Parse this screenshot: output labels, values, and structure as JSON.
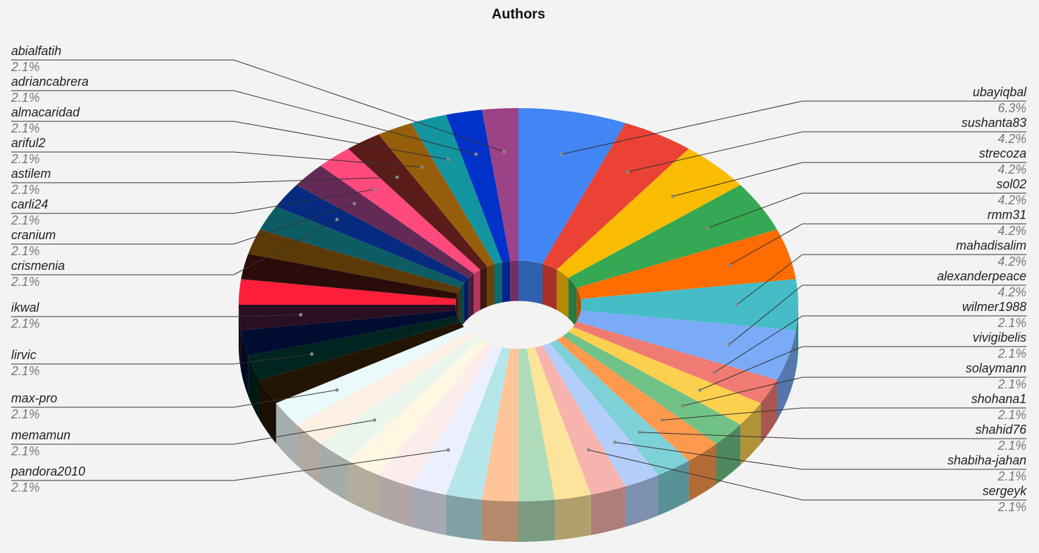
{
  "chart_data": {
    "type": "pie3d-donut",
    "title": "Authors",
    "categories": [
      "ubayiqbal",
      "sushanta83",
      "strecoza",
      "sol02",
      "rmm31",
      "mahadisalim",
      "alexanderpeace",
      "wilmer1988",
      "vivigibelis",
      "solaymann",
      "shohana1",
      "shahid76",
      "shabiha-jahan",
      "sergeyk",
      null,
      null,
      null,
      null,
      "pandora2010",
      null,
      null,
      "memamun",
      null,
      "max-pro",
      null,
      "lirvic",
      null,
      "ikwal",
      null,
      null,
      null,
      null,
      "crismenia",
      "cranium",
      "carli24",
      "astilem",
      "ariful2",
      "almacaridad",
      "adriancabrera",
      "abialfatih"
    ],
    "values": [
      6.3,
      4.2,
      4.2,
      4.2,
      4.2,
      4.2,
      4.2,
      2.1,
      2.1,
      2.1,
      2.1,
      2.1,
      2.1,
      2.1,
      2.1,
      2.1,
      2.1,
      2.1,
      2.1,
      2.1,
      2.1,
      2.1,
      2.1,
      2.1,
      2.1,
      2.1,
      2.1,
      2.1,
      2.1,
      2.1,
      2.1,
      2.1,
      2.1,
      2.1,
      2.1,
      2.1,
      2.1,
      2.1,
      2.1,
      2.1
    ],
    "value_labels": [
      "6.3%",
      "4.2%",
      "4.2%",
      "4.2%",
      "4.2%",
      "4.2%",
      "4.2%",
      "2.1%",
      "2.1%",
      "2.1%",
      "2.1%",
      "2.1%",
      "2.1%",
      "2.1%",
      null,
      null,
      null,
      null,
      "2.1%",
      null,
      null,
      "2.1%",
      null,
      "2.1%",
      null,
      "2.1%",
      null,
      "2.1%",
      null,
      null,
      null,
      null,
      "2.1%",
      "2.1%",
      "2.1%",
      "2.1%",
      "2.1%",
      "2.1%",
      "2.1%",
      "2.1%"
    ],
    "colors": [
      "#4285f4",
      "#ea4335",
      "#fbbc04",
      "#34a853",
      "#ff6d01",
      "#46bdc6",
      "#7baaf7",
      "#f07b72",
      "#fcd04f",
      "#71c287",
      "#ff994d",
      "#7ed1d7",
      "#b3cefb",
      "#f7b4ae",
      "#fde49b",
      "#aedcba",
      "#ffc599",
      "#b5e6ea",
      "#ecf0fe",
      "#fdecec",
      "#fff7e1",
      "#eaf5ee",
      "#fff0e5",
      "#ecf9fa",
      "#231503",
      "#00241f",
      "#000c30",
      "#2a0f23",
      "#ff1f3a",
      "#2a0d0b",
      "#5c3a08",
      "#0e5c63",
      "#062a80",
      "#632a56",
      "#ff4a7e",
      "#5a1c18",
      "#965e0a",
      "#1395a0",
      "#0031c8",
      "#9c4287"
    ]
  }
}
